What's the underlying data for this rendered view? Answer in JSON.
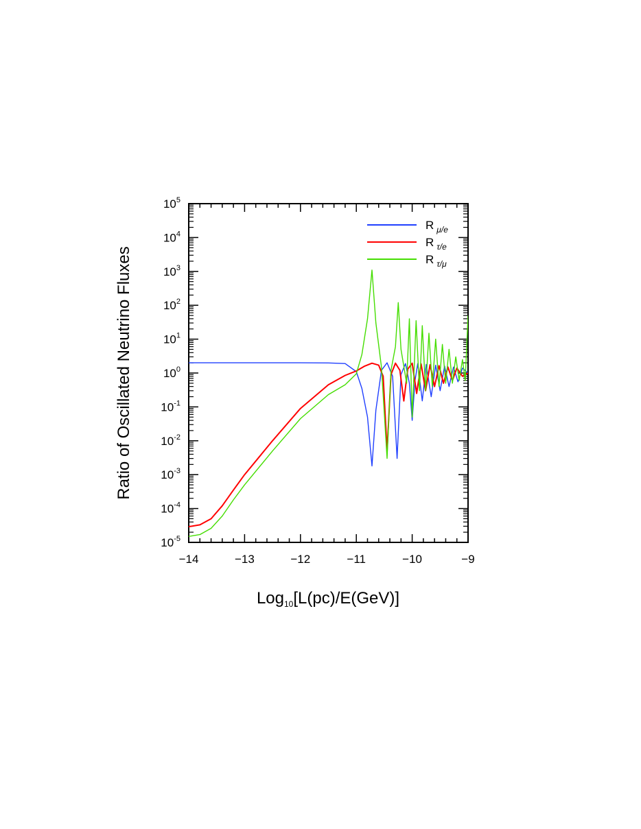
{
  "chart_data": {
    "type": "line",
    "title": "",
    "xlabel": "Log10[L(pc)/E(GeV)]",
    "xlabel_parts": {
      "pre": "Log",
      "sub": "10",
      "post": "[L(pc)/E(GeV)]"
    },
    "ylabel": "Ratio of Oscillated Neutrino Fluxes",
    "xlim": [
      -14,
      -9
    ],
    "ylim": [
      1e-05,
      100000.0
    ],
    "yscale": "log",
    "x_ticks": [
      {
        "value": -14,
        "label": "−14"
      },
      {
        "value": -13,
        "label": "−13"
      },
      {
        "value": -12,
        "label": "−12"
      },
      {
        "value": -11,
        "label": "−11"
      },
      {
        "value": -10,
        "label": "−10"
      },
      {
        "value": -9,
        "label": "−9"
      }
    ],
    "y_ticks": [
      {
        "exp": -5,
        "base": "10",
        "sup": "-5"
      },
      {
        "exp": -4,
        "base": "10",
        "sup": "-4"
      },
      {
        "exp": -3,
        "base": "10",
        "sup": "-3"
      },
      {
        "exp": -2,
        "base": "10",
        "sup": "-2"
      },
      {
        "exp": -1,
        "base": "10",
        "sup": "-1"
      },
      {
        "exp": 0,
        "base": "10",
        "sup": "0"
      },
      {
        "exp": 1,
        "base": "10",
        "sup": "1"
      },
      {
        "exp": 2,
        "base": "10",
        "sup": "2"
      },
      {
        "exp": 3,
        "base": "10",
        "sup": "3"
      },
      {
        "exp": 4,
        "base": "10",
        "sup": "4"
      },
      {
        "exp": 5,
        "base": "10",
        "sup": "5"
      }
    ],
    "grid": false,
    "legend_placement": "top-right",
    "series": [
      {
        "key": "mu_e",
        "name": "R μ/e",
        "label_main": "R",
        "label_sub": "μ/e",
        "color": "#1f3fff",
        "points": [
          [
            -14,
            2.0
          ],
          [
            -13,
            2.0
          ],
          [
            -12,
            2.0
          ],
          [
            -11.5,
            1.98
          ],
          [
            -11.2,
            1.9
          ],
          [
            -11.0,
            1.1
          ],
          [
            -10.9,
            0.35
          ],
          [
            -10.8,
            0.05
          ],
          [
            -10.72,
            0.0018
          ],
          [
            -10.65,
            0.08
          ],
          [
            -10.55,
            1.2
          ],
          [
            -10.45,
            2.0
          ],
          [
            -10.35,
            0.8
          ],
          [
            -10.27,
            0.003
          ],
          [
            -10.2,
            0.9
          ],
          [
            -10.12,
            1.9
          ],
          [
            -10.05,
            0.5
          ],
          [
            -10.0,
            0.04
          ],
          [
            -9.95,
            0.6
          ],
          [
            -9.9,
            1.9
          ],
          [
            -9.82,
            0.15
          ],
          [
            -9.75,
            1.8
          ],
          [
            -9.66,
            0.2
          ],
          [
            -9.58,
            1.7
          ],
          [
            -9.5,
            0.3
          ],
          [
            -9.42,
            1.6
          ],
          [
            -9.34,
            0.4
          ],
          [
            -9.26,
            1.5
          ],
          [
            -9.18,
            0.55
          ],
          [
            -9.1,
            1.4
          ],
          [
            -9.0,
            1.0
          ]
        ]
      },
      {
        "key": "tau_e",
        "name": "R τ/e",
        "label_main": "R",
        "label_sub": "τ/e",
        "color": "#ff0000",
        "points": [
          [
            -14,
            2.9e-05
          ],
          [
            -13.8,
            3.3e-05
          ],
          [
            -13.6,
            5e-05
          ],
          [
            -13.4,
            0.00012
          ],
          [
            -13.2,
            0.00035
          ],
          [
            -13.0,
            0.001
          ],
          [
            -12.5,
            0.01
          ],
          [
            -12.0,
            0.09
          ],
          [
            -11.5,
            0.45
          ],
          [
            -11.2,
            0.85
          ],
          [
            -11.0,
            1.15
          ],
          [
            -10.85,
            1.6
          ],
          [
            -10.72,
            1.95
          ],
          [
            -10.6,
            1.7
          ],
          [
            -10.52,
            0.8
          ],
          [
            -10.45,
            0.005
          ],
          [
            -10.38,
            0.9
          ],
          [
            -10.3,
            1.95
          ],
          [
            -10.22,
            1.2
          ],
          [
            -10.15,
            0.15
          ],
          [
            -10.08,
            1.3
          ],
          [
            -10.0,
            1.95
          ],
          [
            -9.92,
            0.25
          ],
          [
            -9.84,
            1.85
          ],
          [
            -9.76,
            0.3
          ],
          [
            -9.68,
            1.75
          ],
          [
            -9.6,
            0.4
          ],
          [
            -9.52,
            1.65
          ],
          [
            -9.44,
            0.5
          ],
          [
            -9.36,
            1.5
          ],
          [
            -9.28,
            0.6
          ],
          [
            -9.2,
            1.4
          ],
          [
            -9.1,
            0.8
          ],
          [
            -9.0,
            1.0
          ]
        ]
      },
      {
        "key": "tau_mu",
        "name": "R τ/μ",
        "label_main": "R",
        "label_sub": "τ/μ",
        "color": "#44dd00",
        "points": [
          [
            -14,
            1.5e-05
          ],
          [
            -13.8,
            1.7e-05
          ],
          [
            -13.6,
            2.6e-05
          ],
          [
            -13.4,
            6e-05
          ],
          [
            -13.2,
            0.00018
          ],
          [
            -13.0,
            0.0005
          ],
          [
            -12.5,
            0.005
          ],
          [
            -12.0,
            0.045
          ],
          [
            -11.5,
            0.23
          ],
          [
            -11.2,
            0.45
          ],
          [
            -11.0,
            0.95
          ],
          [
            -10.9,
            3.5
          ],
          [
            -10.8,
            40
          ],
          [
            -10.72,
            1100
          ],
          [
            -10.65,
            30
          ],
          [
            -10.55,
            1.5
          ],
          [
            -10.45,
            0.003
          ],
          [
            -10.38,
            1.2
          ],
          [
            -10.3,
            6
          ],
          [
            -10.25,
            120
          ],
          [
            -10.2,
            5
          ],
          [
            -10.1,
            0.5
          ],
          [
            -10.05,
            40
          ],
          [
            -10.0,
            0.05
          ],
          [
            -9.93,
            35
          ],
          [
            -9.87,
            0.3
          ],
          [
            -9.82,
            25
          ],
          [
            -9.76,
            0.3
          ],
          [
            -9.7,
            15
          ],
          [
            -9.64,
            0.4
          ],
          [
            -9.58,
            10
          ],
          [
            -9.52,
            0.4
          ],
          [
            -9.46,
            7
          ],
          [
            -9.4,
            0.5
          ],
          [
            -9.34,
            5
          ],
          [
            -9.28,
            0.5
          ],
          [
            -9.22,
            3
          ],
          [
            -9.16,
            0.6
          ],
          [
            -9.1,
            2.5
          ],
          [
            -9.05,
            0.6
          ],
          [
            -9.0,
            50
          ]
        ]
      }
    ]
  }
}
